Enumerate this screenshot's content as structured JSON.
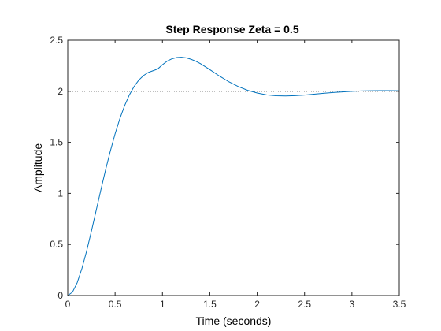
{
  "chart_data": {
    "type": "line",
    "title": "Step Response Zeta = 0.5",
    "xlabel": "Time (seconds)",
    "ylabel": "Amplitude",
    "xlim": [
      0,
      3.5
    ],
    "ylim": [
      0,
      2.5
    ],
    "x_ticks": [
      "0",
      "0.5",
      "1",
      "1.5",
      "2",
      "2.5",
      "3",
      "3.5"
    ],
    "x_tick_values": [
      0,
      0.5,
      1,
      1.5,
      2,
      2.5,
      3,
      3.5
    ],
    "y_ticks": [
      "0",
      "0.5",
      "1",
      "1.5",
      "2",
      "2.5"
    ],
    "y_tick_values": [
      0,
      0.5,
      1,
      1.5,
      2,
      2.5
    ],
    "grid": false,
    "reference_line": {
      "y": 2.0,
      "style": "dotted",
      "color": "#000000"
    },
    "series": [
      {
        "color": "#0072BD",
        "x": [
          0,
          0.05,
          0.1,
          0.15,
          0.2,
          0.25,
          0.3,
          0.35,
          0.4,
          0.45,
          0.5,
          0.55,
          0.6,
          0.65,
          0.7,
          0.75,
          0.8,
          0.85,
          0.9,
          0.95,
          1.0,
          1.05,
          1.1,
          1.15,
          1.2,
          1.25,
          1.3,
          1.35,
          1.4,
          1.5,
          1.6,
          1.7,
          1.8,
          1.9,
          2.0,
          2.1,
          2.2,
          2.3,
          2.4,
          2.5,
          2.6,
          2.7,
          2.8,
          2.9,
          3.0,
          3.1,
          3.2,
          3.3,
          3.4,
          3.5
        ],
        "y": [
          0,
          0.033,
          0.126,
          0.265,
          0.437,
          0.63,
          0.832,
          1.035,
          1.232,
          1.415,
          1.583,
          1.731,
          1.858,
          1.963,
          2.046,
          2.109,
          2.154,
          2.184,
          2.201,
          2.218,
          2.26,
          2.295,
          2.318,
          2.33,
          2.333,
          2.327,
          2.314,
          2.295,
          2.271,
          2.212,
          2.15,
          2.093,
          2.046,
          2.009,
          1.983,
          1.965,
          1.956,
          1.954,
          1.957,
          1.963,
          1.971,
          1.98,
          1.988,
          1.994,
          1.999,
          2.003,
          2.005,
          2.006,
          2.006,
          2.005
        ]
      }
    ]
  }
}
